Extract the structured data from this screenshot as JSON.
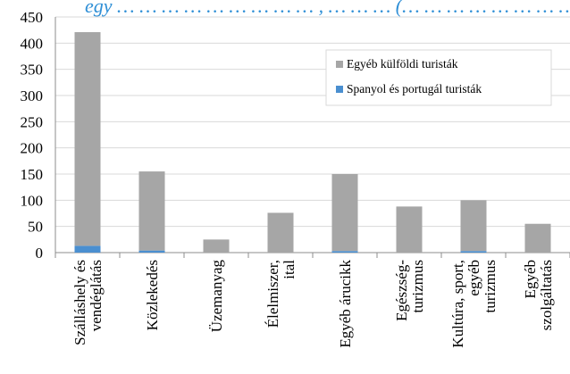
{
  "chart_data": {
    "type": "bar",
    "stacked": true,
    "title_fragment": "egy … … … … … … … … … , … … … (… … … … … … … … …)",
    "categories": [
      [
        "Szálláshely és",
        "vendéglátás"
      ],
      [
        "Közlekedés"
      ],
      [
        "Üzemanyag"
      ],
      [
        "Élelmiszer,",
        "ital"
      ],
      [
        "Egyéb árucikk"
      ],
      [
        "Egészség-",
        "turizmus"
      ],
      [
        "Kultúra, sport,",
        "egyéb",
        "turizmus"
      ],
      [
        "Egyéb",
        "szolgáltatás"
      ]
    ],
    "series": [
      {
        "name": "Spanyol és portugál turisták",
        "color": "#4a8fd0",
        "values": [
          13,
          4,
          0,
          0,
          3,
          0,
          3,
          0
        ]
      },
      {
        "name": "Egyéb külföldi turisták",
        "color": "#a6a6a6",
        "values": [
          408,
          151,
          25,
          76,
          147,
          88,
          97,
          55
        ]
      }
    ],
    "legend_order": [
      "Egyéb külföldi turisták",
      "Spanyol és portugál turisták"
    ],
    "ylim": [
      0,
      450
    ],
    "yticks": [
      0,
      50,
      100,
      150,
      200,
      250,
      300,
      350,
      400,
      450
    ],
    "grid": true,
    "legend_position": "top-right"
  }
}
